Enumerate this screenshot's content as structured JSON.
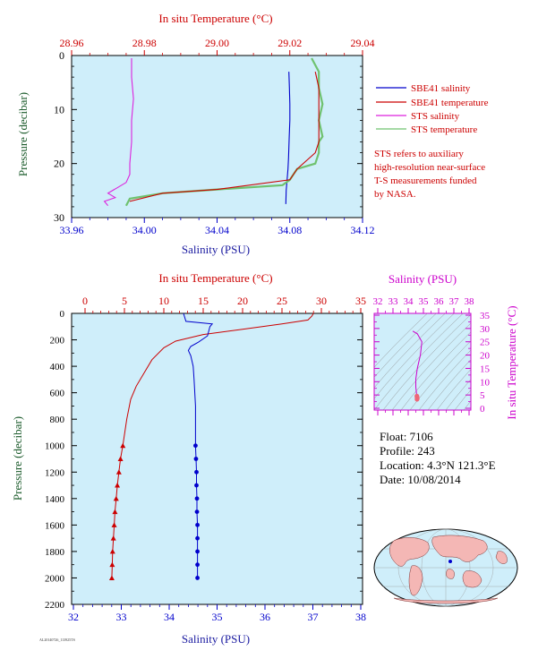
{
  "colors": {
    "panel_bg": "#cfeefa",
    "temperature": "#cc0000",
    "salinity": "#0000cc",
    "sts_salinity": "#dd22dd",
    "sts_temperature": "#6fc26f",
    "pressure_axis": "#1a5a2a",
    "ts_axis": "#cc00cc"
  },
  "chart_data": [
    {
      "id": "near-surface",
      "type": "line",
      "x_top_label": "In situ Temperature (°C)",
      "x_top_ticks": [
        "28.96",
        "28.98",
        "29.00",
        "29.02",
        "29.04"
      ],
      "x_top_range": [
        28.96,
        29.04
      ],
      "x_bottom_label": "Salinity (PSU)",
      "x_bottom_ticks": [
        "33.96",
        "34.00",
        "34.04",
        "34.08",
        "34.12"
      ],
      "x_bottom_range": [
        33.96,
        34.12
      ],
      "ylabel": "Pressure (decibar)",
      "y_ticks": [
        "0",
        "10",
        "20",
        "30"
      ],
      "y_range": [
        0,
        30
      ],
      "legend": [
        "SBE41 salinity",
        "SBE41 temperature",
        "STS salinity",
        "STS temperature"
      ],
      "note": [
        "STS refers to auxiliary",
        "high-resolution near-surface",
        "T-S measurements funded",
        "by NASA."
      ],
      "series": [
        {
          "name": "SBE41 salinity",
          "axis": "salinity",
          "x": [
            34.0795,
            34.0798,
            34.08,
            34.08,
            34.0797,
            34.0795,
            34.0793,
            34.079,
            34.0785,
            34.078,
            34.0778
          ],
          "y": [
            3,
            6,
            9,
            12,
            15,
            17,
            19,
            21,
            23,
            25,
            27.5
          ]
        },
        {
          "name": "STS salinity",
          "axis": "salinity",
          "x": [
            33.993,
            33.993,
            33.994,
            33.993,
            33.993,
            33.992,
            33.992,
            33.99,
            33.985,
            33.98,
            33.984,
            33.978,
            33.98
          ],
          "y": [
            0.5,
            4,
            8,
            12,
            16,
            20,
            22,
            23.5,
            24.5,
            25.5,
            26.3,
            27,
            27.8
          ]
        },
        {
          "name": "STS temperature",
          "axis": "temperature",
          "x": [
            29.026,
            29.028,
            29.028,
            29.029,
            29.028,
            29.029,
            29.028,
            29.028,
            29.027,
            29.022,
            29.021,
            29.02,
            29.018,
            29.0,
            28.985,
            28.976,
            28.975
          ],
          "y": [
            0.5,
            3,
            6,
            9,
            12,
            15,
            16,
            18,
            20,
            21,
            22,
            23,
            24,
            24.8,
            25.5,
            26.5,
            27.8
          ]
        },
        {
          "name": "SBE41 temperature",
          "axis": "temperature",
          "x": [
            29.027,
            29.028,
            29.028,
            29.028,
            29.028,
            29.028,
            29.027,
            29.022,
            29.02,
            29.0,
            28.985,
            28.976
          ],
          "y": [
            3,
            6,
            9,
            12,
            15,
            16,
            18,
            21,
            23,
            24.8,
            25.5,
            27
          ]
        }
      ]
    },
    {
      "id": "full-profile",
      "type": "line",
      "x_top_label": "In situ Temperature (°C)",
      "x_top_ticks": [
        "0",
        "5",
        "10",
        "15",
        "20",
        "25",
        "30",
        "35"
      ],
      "x_top_range": [
        0,
        35
      ],
      "x_bottom_label": "Salinity (PSU)",
      "x_bottom_ticks": [
        "32",
        "33",
        "34",
        "35",
        "36",
        "37",
        "38"
      ],
      "x_bottom_range": [
        32,
        38
      ],
      "ylabel": "Pressure (decibar)",
      "y_ticks": [
        "0",
        "200",
        "400",
        "600",
        "800",
        "1000",
        "1200",
        "1400",
        "1600",
        "1800",
        "2000",
        "2200"
      ],
      "y_range": [
        0,
        2200
      ],
      "series": [
        {
          "name": "Temperature",
          "axis": "temperature",
          "x": [
            29,
            28.8,
            28.3,
            25,
            20,
            15,
            11.5,
            10,
            8.5,
            7.5,
            6.5,
            5.8,
            5.3,
            4.8
          ],
          "y": [
            0,
            20,
            50,
            80,
            120,
            160,
            210,
            260,
            350,
            450,
            550,
            650,
            800,
            1000
          ]
        },
        {
          "name": "Salinity",
          "axis": "salinity",
          "x": [
            34.3,
            34.35,
            34.9,
            34.85,
            34.8,
            34.6,
            34.45,
            34.4,
            34.45,
            34.5,
            34.52,
            34.55,
            34.55
          ],
          "y": [
            0,
            60,
            80,
            100,
            170,
            220,
            250,
            280,
            320,
            400,
            500,
            700,
            1000
          ]
        },
        {
          "name": "Temperature (markers)",
          "axis": "temperature",
          "marker": "triangle",
          "x": [
            4.8,
            4.5,
            4.3,
            4.1,
            3.95,
            3.8,
            3.7,
            3.6,
            3.5,
            3.45,
            3.4
          ],
          "y": [
            1000,
            1100,
            1200,
            1300,
            1400,
            1500,
            1600,
            1700,
            1800,
            1900,
            2000
          ]
        },
        {
          "name": "Salinity (markers)",
          "axis": "salinity",
          "marker": "circle",
          "x": [
            34.55,
            34.56,
            34.57,
            34.57,
            34.58,
            34.58,
            34.59,
            34.59,
            34.59,
            34.59,
            34.59
          ],
          "y": [
            1000,
            1100,
            1200,
            1300,
            1400,
            1500,
            1600,
            1700,
            1800,
            1900,
            2000
          ]
        }
      ]
    },
    {
      "id": "ts-diagram",
      "type": "scatter",
      "x_top_label": "Salinity (PSU)",
      "x_top_ticks": [
        "32",
        "33",
        "34",
        "35",
        "36",
        "37",
        "38"
      ],
      "x_range": [
        32,
        38
      ],
      "ylabel": "In situ Temperature (°C)",
      "y_ticks": [
        "0",
        "5",
        "10",
        "15",
        "20",
        "25",
        "30",
        "35"
      ],
      "y_range": [
        0,
        35
      ],
      "series": [
        {
          "name": "T-S curve",
          "x": [
            34.3,
            34.6,
            34.9,
            34.8,
            34.6,
            34.5,
            34.5,
            34.55,
            34.58
          ],
          "y": [
            29,
            28,
            25,
            20,
            15,
            11,
            8,
            5.5,
            4
          ]
        },
        {
          "name": "T-S deep points",
          "marker": "circle",
          "x": [
            34.57,
            34.58,
            34.59,
            34.59,
            34.58
          ],
          "y": [
            4.6,
            4.2,
            3.9,
            3.6,
            3.4
          ]
        }
      ]
    }
  ],
  "float_info": {
    "float": "Float:  7106",
    "profile": "Profile:  243",
    "location": "Location:  4.3°N  121.3°E",
    "date": "Date:  10/08/2014"
  },
  "footer_tag": "AL20140726_113925TS"
}
